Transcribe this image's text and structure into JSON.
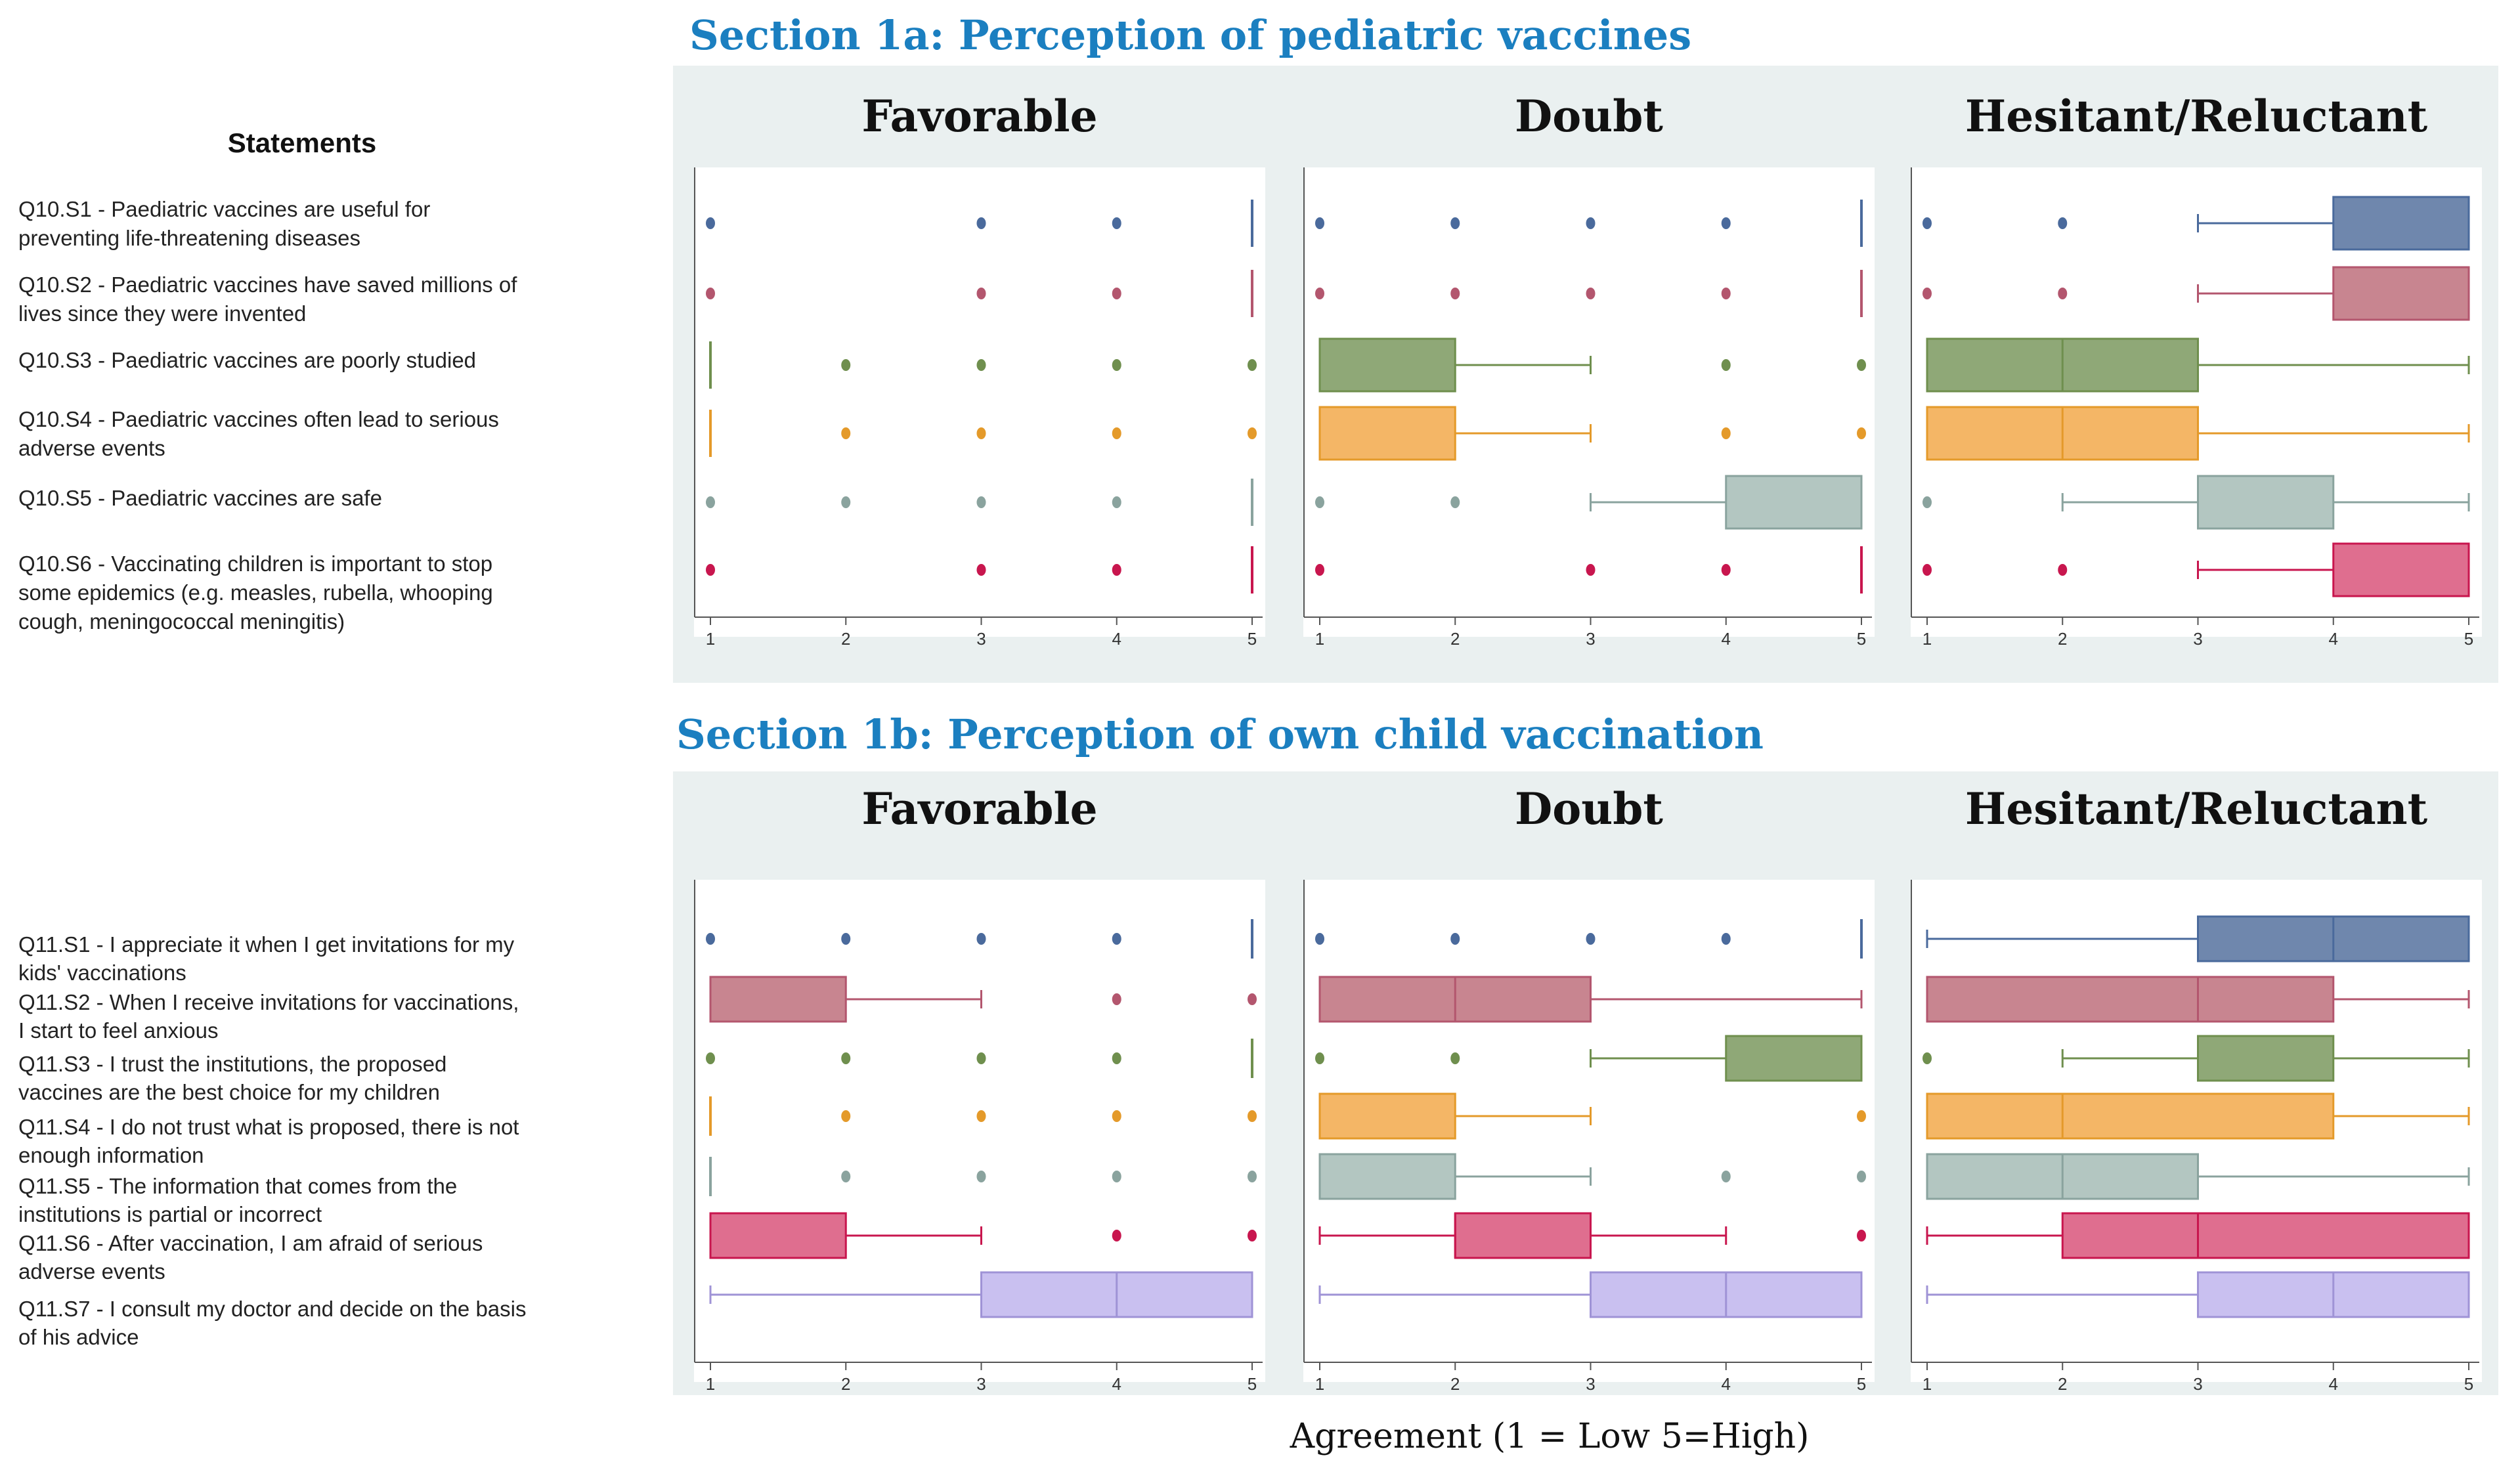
{
  "chart_data": [
    {
      "type": "box",
      "title": "Section 1a: Perception of pediatric vaccines",
      "statements_header": "Statements",
      "panels": [
        "Favorable",
        "Doubt",
        "Hesitant/Reluctant"
      ],
      "xlim": [
        1,
        5
      ],
      "xticks": [
        "1",
        "2",
        "3",
        "4",
        "5"
      ],
      "statements": [
        {
          "id": "Q10.S1",
          "lines": [
            "Q10.S1 - Paediatric vaccines are useful for",
            "preventing life-threatening diseases"
          ],
          "color": "#4a6a9c",
          "fill": "#6f87ad"
        },
        {
          "id": "Q10.S2",
          "lines": [
            "Q10.S2 - Paediatric vaccines have saved millions of",
            "lives since they were invented"
          ],
          "color": "#b3566e",
          "fill": "#c88590"
        },
        {
          "id": "Q10.S3",
          "lines": [
            "Q10.S3 - Paediatric vaccines are poorly studied"
          ],
          "color": "#6f8f4e",
          "fill": "#8fa877"
        },
        {
          "id": "Q10.S4",
          "lines": [
            "Q10.S4 - Paediatric vaccines often lead to serious",
            "adverse events"
          ],
          "color": "#e49a2a",
          "fill": "#f4b666"
        },
        {
          "id": "Q10.S5",
          "lines": [
            "Q10.S5 - Paediatric vaccines are safe"
          ],
          "color": "#8aa39e",
          "fill": "#b3c6c1"
        },
        {
          "id": "Q10.S6",
          "lines": [
            "Q10.S6 - Vaccinating children is important to stop",
            "some epidemics (e.g. measles, rubella, whooping",
            "cough, meningococcal meningitis)"
          ],
          "color": "#c8164e",
          "fill": "#df6e8f"
        }
      ],
      "data": {
        "Favorable": [
          {
            "whisker": [
              5,
              5
            ],
            "box": [
              5,
              5
            ],
            "median": 5,
            "outliers": [
              1,
              3,
              4
            ]
          },
          {
            "whisker": [
              5,
              5
            ],
            "box": [
              5,
              5
            ],
            "median": 5,
            "outliers": [
              1,
              3,
              4
            ]
          },
          {
            "whisker": [
              1,
              1
            ],
            "box": [
              1,
              1
            ],
            "median": 1,
            "outliers": [
              2,
              3,
              4,
              5
            ]
          },
          {
            "whisker": [
              1,
              1
            ],
            "box": [
              1,
              1
            ],
            "median": 1,
            "outliers": [
              2,
              3,
              4,
              5
            ]
          },
          {
            "whisker": [
              5,
              5
            ],
            "box": [
              5,
              5
            ],
            "median": 5,
            "outliers": [
              1,
              2,
              3,
              4
            ]
          },
          {
            "whisker": [
              5,
              5
            ],
            "box": [
              5,
              5
            ],
            "median": 5,
            "outliers": [
              1,
              3,
              4
            ]
          }
        ],
        "Doubt": [
          {
            "whisker": [
              5,
              5
            ],
            "box": [
              5,
              5
            ],
            "median": 5,
            "outliers": [
              1,
              2,
              3,
              4
            ]
          },
          {
            "whisker": [
              5,
              5
            ],
            "box": [
              5,
              5
            ],
            "median": 5,
            "outliers": [
              1,
              2,
              3,
              4
            ]
          },
          {
            "whisker": [
              1,
              3
            ],
            "box": [
              1,
              2
            ],
            "median": 1,
            "outliers": [
              4,
              5
            ]
          },
          {
            "whisker": [
              1,
              3
            ],
            "box": [
              1,
              2
            ],
            "median": 1,
            "outliers": [
              4,
              5
            ]
          },
          {
            "whisker": [
              3,
              5
            ],
            "box": [
              4,
              5
            ],
            "median": 5,
            "outliers": [
              1,
              2
            ]
          },
          {
            "whisker": [
              5,
              5
            ],
            "box": [
              5,
              5
            ],
            "median": 5,
            "outliers": [
              1,
              3,
              4
            ]
          }
        ],
        "Hesitant/Reluctant": [
          {
            "whisker": [
              3,
              5
            ],
            "box": [
              4,
              5
            ],
            "median": 5,
            "outliers": [
              1,
              2
            ]
          },
          {
            "whisker": [
              3,
              5
            ],
            "box": [
              4,
              5
            ],
            "median": 5,
            "outliers": [
              1,
              2
            ]
          },
          {
            "whisker": [
              1,
              5
            ],
            "box": [
              1,
              3
            ],
            "median": 2,
            "outliers": []
          },
          {
            "whisker": [
              1,
              5
            ],
            "box": [
              1,
              3
            ],
            "median": 2,
            "outliers": []
          },
          {
            "whisker": [
              2,
              5
            ],
            "box": [
              3,
              4
            ],
            "median": 3,
            "outliers": [
              1
            ]
          },
          {
            "whisker": [
              3,
              5
            ],
            "box": [
              4,
              5
            ],
            "median": 5,
            "outliers": [
              1,
              2
            ]
          }
        ]
      }
    },
    {
      "type": "box",
      "title": "Section 1b: Perception of own child vaccination",
      "panels": [
        "Favorable",
        "Doubt",
        "Hesitant/Reluctant"
      ],
      "xlim": [
        1,
        5
      ],
      "xticks": [
        "1",
        "2",
        "3",
        "4",
        "5"
      ],
      "xlabel": "Agreement  (1 = Low     5=High)",
      "statements": [
        {
          "id": "Q11.S1",
          "lines": [
            "Q11.S1 - I appreciate it when I get invitations for my",
            "kids' vaccinations"
          ],
          "color": "#4a6a9c",
          "fill": "#6f87ad"
        },
        {
          "id": "Q11.S2",
          "lines": [
            "Q11.S2 - When I receive invitations for vaccinations,",
            "I start to feel anxious"
          ],
          "color": "#b3566e",
          "fill": "#c88590"
        },
        {
          "id": "Q11.S3",
          "lines": [
            "Q11.S3 - I trust the institutions, the proposed",
            "vaccines are the best choice for my children"
          ],
          "color": "#6f8f4e",
          "fill": "#8fa877"
        },
        {
          "id": "Q11.S4",
          "lines": [
            "Q11.S4 - I do not trust what is proposed, there is not",
            "enough information"
          ],
          "color": "#e49a2a",
          "fill": "#f4b666"
        },
        {
          "id": "Q11.S5",
          "lines": [
            "Q11.S5 - The information that comes from the",
            "institutions is partial or incorrect"
          ],
          "color": "#8aa39e",
          "fill": "#b3c6c1"
        },
        {
          "id": "Q11.S6",
          "lines": [
            "Q11.S6 - After vaccination, I am afraid of serious",
            "adverse events"
          ],
          "color": "#c8164e",
          "fill": "#df6e8f"
        },
        {
          "id": "Q11.S7",
          "lines": [
            "Q11.S7 - I consult my doctor and decide on the basis",
            "of his advice"
          ],
          "color": "#9f93d6",
          "fill": "#c9c0f0"
        }
      ],
      "data": {
        "Favorable": [
          {
            "whisker": [
              5,
              5
            ],
            "box": [
              5,
              5
            ],
            "median": 5,
            "outliers": [
              1,
              2,
              3,
              4
            ]
          },
          {
            "whisker": [
              1,
              3
            ],
            "box": [
              1,
              2
            ],
            "median": 1,
            "outliers": [
              4,
              5
            ]
          },
          {
            "whisker": [
              5,
              5
            ],
            "box": [
              5,
              5
            ],
            "median": 5,
            "outliers": [
              1,
              2,
              3,
              4
            ]
          },
          {
            "whisker": [
              1,
              1
            ],
            "box": [
              1,
              1
            ],
            "median": 1,
            "outliers": [
              2,
              3,
              4,
              5
            ]
          },
          {
            "whisker": [
              1,
              1
            ],
            "box": [
              1,
              1
            ],
            "median": 1,
            "outliers": [
              2,
              3,
              4,
              5
            ]
          },
          {
            "whisker": [
              1,
              3
            ],
            "box": [
              1,
              2
            ],
            "median": 1,
            "outliers": [
              4,
              5
            ]
          },
          {
            "whisker": [
              1,
              5
            ],
            "box": [
              3,
              5
            ],
            "median": 4,
            "outliers": []
          }
        ],
        "Doubt": [
          {
            "whisker": [
              5,
              5
            ],
            "box": [
              5,
              5
            ],
            "median": 5,
            "outliers": [
              1,
              2,
              3,
              4
            ]
          },
          {
            "whisker": [
              1,
              5
            ],
            "box": [
              1,
              3
            ],
            "median": 2,
            "outliers": []
          },
          {
            "whisker": [
              3,
              5
            ],
            "box": [
              4,
              5
            ],
            "median": 5,
            "outliers": [
              1,
              2
            ]
          },
          {
            "whisker": [
              1,
              3
            ],
            "box": [
              1,
              2
            ],
            "median": 1,
            "outliers": [
              5
            ]
          },
          {
            "whisker": [
              1,
              3
            ],
            "box": [
              1,
              2
            ],
            "median": 1,
            "outliers": [
              4,
              5
            ]
          },
          {
            "whisker": [
              1,
              4
            ],
            "box": [
              2,
              3
            ],
            "median": 2,
            "outliers": [
              5
            ]
          },
          {
            "whisker": [
              1,
              5
            ],
            "box": [
              3,
              5
            ],
            "median": 4,
            "outliers": []
          }
        ],
        "Hesitant/Reluctant": [
          {
            "whisker": [
              1,
              5
            ],
            "box": [
              3,
              5
            ],
            "median": 4,
            "outliers": []
          },
          {
            "whisker": [
              1,
              5
            ],
            "box": [
              1,
              4
            ],
            "median": 3,
            "outliers": []
          },
          {
            "whisker": [
              2,
              5
            ],
            "box": [
              3,
              4
            ],
            "median": 3,
            "outliers": [
              1
            ]
          },
          {
            "whisker": [
              1,
              5
            ],
            "box": [
              1,
              4
            ],
            "median": 2,
            "outliers": []
          },
          {
            "whisker": [
              1,
              5
            ],
            "box": [
              1,
              3
            ],
            "median": 2,
            "outliers": []
          },
          {
            "whisker": [
              1,
              5
            ],
            "box": [
              2,
              5
            ],
            "median": 3,
            "outliers": []
          },
          {
            "whisker": [
              1,
              5
            ],
            "box": [
              3,
              5
            ],
            "median": 4,
            "outliers": []
          }
        ]
      }
    }
  ]
}
